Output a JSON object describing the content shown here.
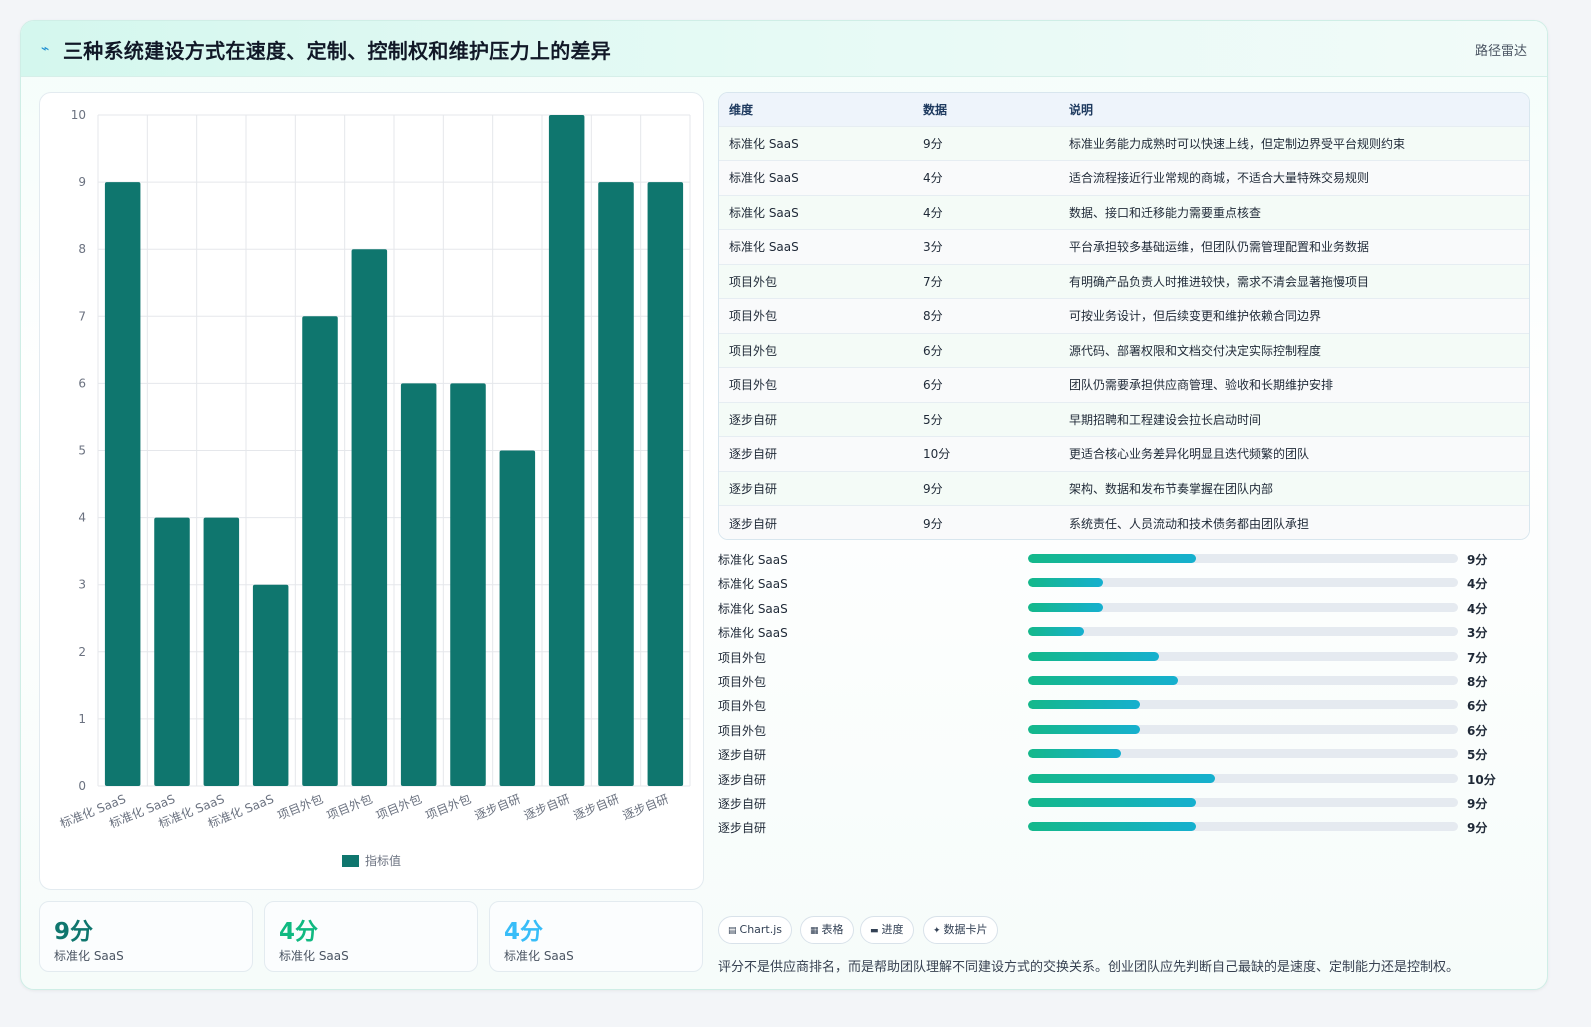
{
  "header": {
    "title": "三种系统建设方式在速度、定制、控制权和维护压力上的差异",
    "tag": "路径雷达",
    "icon": "spark-icon"
  },
  "chart_data": {
    "type": "bar",
    "categories": [
      "标准化 SaaS",
      "标准化 SaaS",
      "标准化 SaaS",
      "标准化 SaaS",
      "项目外包",
      "项目外包",
      "项目外包",
      "项目外包",
      "逐步自研",
      "逐步自研",
      "逐步自研",
      "逐步自研"
    ],
    "series": [
      {
        "name": "指标值",
        "values": [
          9,
          4,
          4,
          3,
          7,
          8,
          6,
          6,
          5,
          10,
          9,
          9
        ]
      }
    ],
    "ylim": [
      0,
      10
    ],
    "yticks": [
      0,
      1,
      2,
      3,
      4,
      5,
      6,
      7,
      8,
      9,
      10
    ],
    "grid": true,
    "legend": "bottom",
    "bar_color": "#0f766e"
  },
  "table": {
    "headers": [
      "维度",
      "数据",
      "说明"
    ],
    "rows": [
      [
        "标准化 SaaS",
        "9分",
        "标准业务能力成熟时可以快速上线，但定制边界受平台规则约束"
      ],
      [
        "标准化 SaaS",
        "4分",
        "适合流程接近行业常规的商城，不适合大量特殊交易规则"
      ],
      [
        "标准化 SaaS",
        "4分",
        "数据、接口和迁移能力需要重点核查"
      ],
      [
        "标准化 SaaS",
        "3分",
        "平台承担较多基础运维，但团队仍需管理配置和业务数据"
      ],
      [
        "项目外包",
        "7分",
        "有明确产品负责人时推进较快，需求不清会显著拖慢项目"
      ],
      [
        "项目外包",
        "8分",
        "可按业务设计，但后续变更和维护依赖合同边界"
      ],
      [
        "项目外包",
        "6分",
        "源代码、部署权限和文档交付决定实际控制程度"
      ],
      [
        "项目外包",
        "6分",
        "团队仍需要承担供应商管理、验收和长期维护安排"
      ],
      [
        "逐步自研",
        "5分",
        "早期招聘和工程建设会拉长启动时间"
      ],
      [
        "逐步自研",
        "10分",
        "更适合核心业务差异化明显且迭代频繁的团队"
      ],
      [
        "逐步自研",
        "9分",
        "架构、数据和发布节奏掌握在团队内部"
      ],
      [
        "逐步自研",
        "9分",
        "系统责任、人员流动和技术债务都由团队承担"
      ]
    ]
  },
  "progress": [
    {
      "label": "标准化 SaaS",
      "value": 9,
      "text": "9分"
    },
    {
      "label": "标准化 SaaS",
      "value": 4,
      "text": "4分"
    },
    {
      "label": "标准化 SaaS",
      "value": 4,
      "text": "4分"
    },
    {
      "label": "标准化 SaaS",
      "value": 3,
      "text": "3分"
    },
    {
      "label": "项目外包",
      "value": 7,
      "text": "7分"
    },
    {
      "label": "项目外包",
      "value": 8,
      "text": "8分"
    },
    {
      "label": "项目外包",
      "value": 6,
      "text": "6分"
    },
    {
      "label": "项目外包",
      "value": 6,
      "text": "6分"
    },
    {
      "label": "逐步自研",
      "value": 5,
      "text": "5分"
    },
    {
      "label": "逐步自研",
      "value": 10,
      "text": "10分"
    },
    {
      "label": "逐步自研",
      "value": 9,
      "text": "9分"
    },
    {
      "label": "逐步自研",
      "value": 9,
      "text": "9分"
    }
  ],
  "progress_max": 23,
  "stats": [
    {
      "value": "9分",
      "label": "标准化 SaaS",
      "color": "#0f766e"
    },
    {
      "value": "4分",
      "label": "标准化 SaaS",
      "color": "#10b981"
    },
    {
      "value": "4分",
      "label": "标准化 SaaS",
      "color": "#38bdf8"
    }
  ],
  "chips": [
    {
      "icon": "chart-icon",
      "label": "Chart.js"
    },
    {
      "icon": "table-icon",
      "label": "表格"
    },
    {
      "icon": "progress-icon",
      "label": "进度"
    },
    {
      "icon": "card-icon",
      "label": "数据卡片"
    }
  ],
  "note": "评分不是供应商排名，而是帮助团队理解不同建设方式的交换关系。创业团队应先判断自己最缺的是速度、定制能力还是控制权。"
}
